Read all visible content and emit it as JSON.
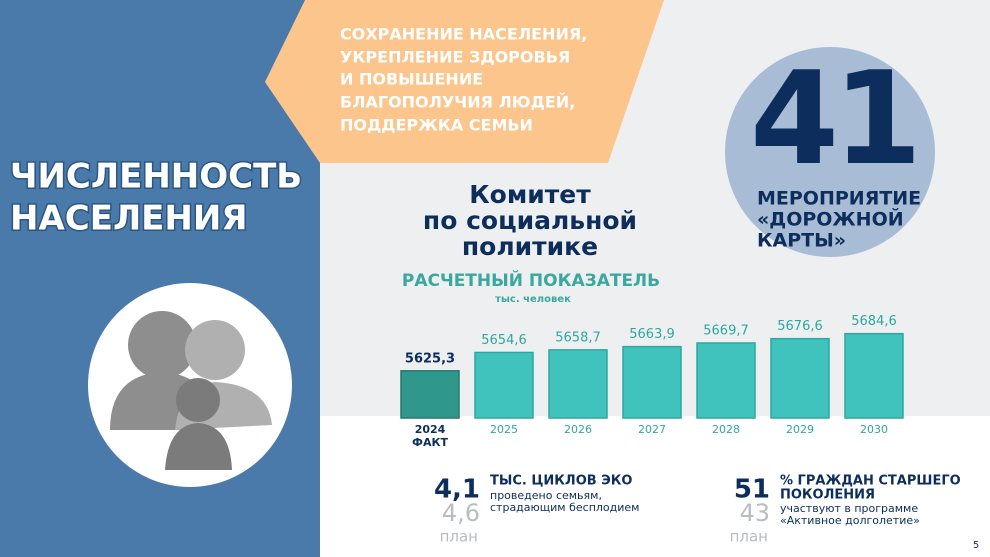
{
  "heading": [
    "ЧИСЛЕННОСТЬ",
    "НАСЕЛЕНИЯ"
  ],
  "banner": [
    "СОХРАНЕНИЕ НАСЕЛЕНИЯ,",
    "УКРЕПЛЕНИЕ ЗДОРОВЬЯ",
    "И ПОВЫШЕНИЕ",
    "БЛАГОПОЛУЧИЯ ЛЮДЕЙ,",
    "ПОДДЕРЖКА СЕМЬИ"
  ],
  "committee": [
    "Комитет",
    "по социальной",
    "политике"
  ],
  "badge": {
    "number": "41",
    "text": [
      "МЕРОПРИЯТИЕ",
      "«ДОРОЖНОЙ",
      "КАРТЫ»"
    ]
  },
  "chart_data": {
    "type": "bar",
    "title": "РАСЧЕТНЫЙ ПОКАЗАТЕЛЬ",
    "subtitle": "тыс. человек",
    "categories": [
      "2024",
      "2025",
      "2026",
      "2027",
      "2028",
      "2029",
      "2030"
    ],
    "annotation": "ФАКТ",
    "values": [
      5625.3,
      5654.6,
      5658.7,
      5663.9,
      5669.7,
      5676.6,
      5684.6
    ],
    "value_labels": [
      "5625,3",
      "5654,6",
      "5658,7",
      "5663,9",
      "5669,7",
      "5676,6",
      "5684,6"
    ],
    "colors": [
      "#2f978b",
      "#3fc3bc",
      "#3fc3bc",
      "#3fc3bc",
      "#3fc3bc",
      "#3fc3bc",
      "#3fc3bc"
    ],
    "ylim": [
      5550,
      5700
    ]
  },
  "stats": [
    {
      "value": "4,1",
      "plan": "4,6",
      "plan_label": "план",
      "title": [
        "ТЫС. ЦИКЛОВ ЭКО"
      ],
      "text": [
        "проведено семьям,",
        "страдающим бесплодием"
      ]
    },
    {
      "value": "51",
      "plan": "43",
      "plan_label": "план",
      "title": [
        "% ГРАЖДАН СТАРШЕГО",
        "ПОКОЛЕНИЯ"
      ],
      "text": [
        "участвуют в программе",
        "«Активное долголетие»"
      ]
    }
  ],
  "page_number": "5"
}
